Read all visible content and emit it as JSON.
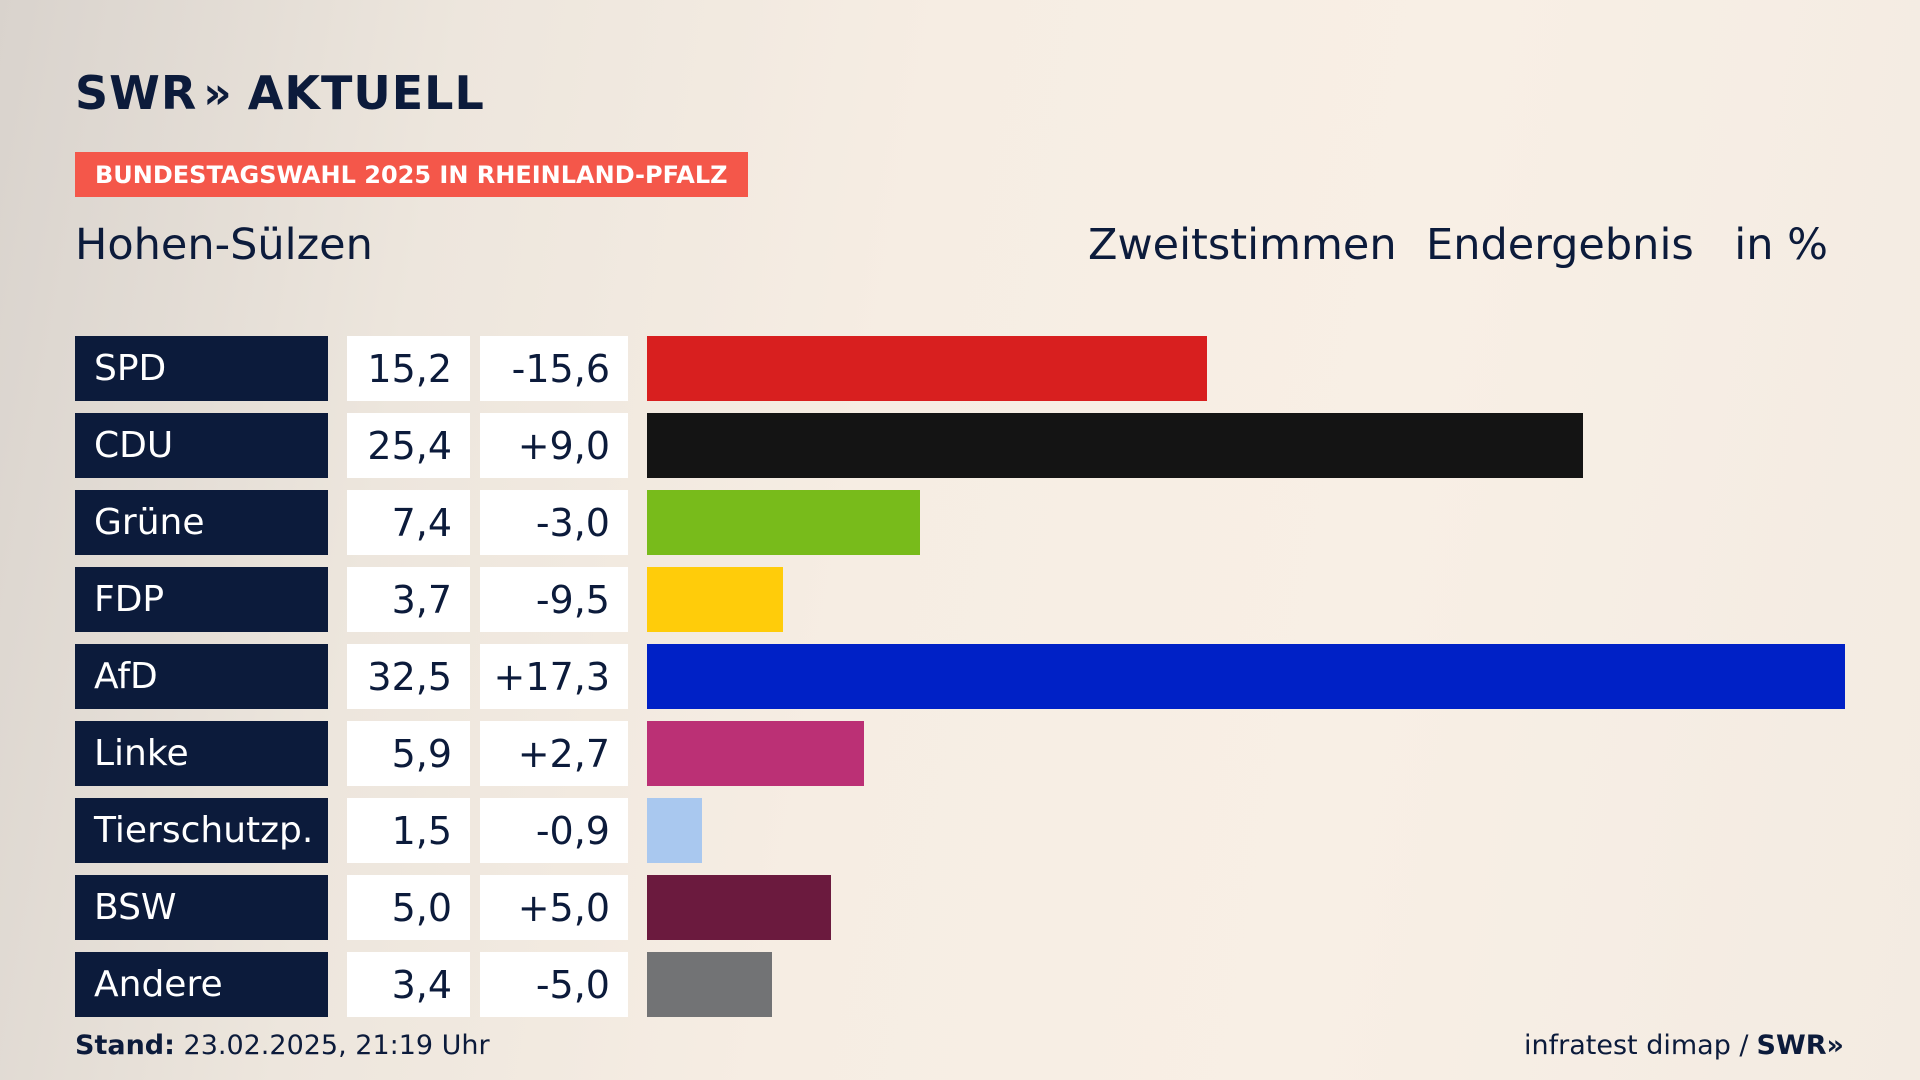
{
  "header": {
    "logo_text": "SWR",
    "logo_chevrons": "»",
    "logo_word": "AKTUELL",
    "badge": "BUNDESTAGSWAHL 2025 IN RHEINLAND-PFALZ",
    "badge_color": "#f4574a",
    "place": "Hohen-Sülzen",
    "col_vote": "Zweitstimmen",
    "col_status": "Endergebnis",
    "col_unit": "in %"
  },
  "footer": {
    "stand_label": "Stand:",
    "stand_value": "23.02.2025, 21:19 Uhr",
    "source": "infratest dimap /",
    "source_brand": "SWR»"
  },
  "chart_data": {
    "type": "bar",
    "orientation": "horizontal",
    "xlim": [
      0,
      32.5
    ],
    "categories": [
      "SPD",
      "CDU",
      "Grüne",
      "FDP",
      "AfD",
      "Linke",
      "Tierschutzp.",
      "BSW",
      "Andere"
    ],
    "values": [
      15.2,
      25.4,
      7.4,
      3.7,
      32.5,
      5.9,
      1.5,
      5.0,
      3.4
    ],
    "value_labels": [
      "15,2",
      "25,4",
      "7,4",
      "3,7",
      "32,5",
      "5,9",
      "1,5",
      "5,0",
      "3,4"
    ],
    "diff_labels": [
      "-15,6",
      "+9,0",
      "-3,0",
      "-9,5",
      "+17,3",
      "+2,7",
      "-0,9",
      "+5,0",
      "-5,0"
    ],
    "colors": [
      "#d81f1f",
      "#141414",
      "#78bb1b",
      "#ffcc0a",
      "#0021c6",
      "#bb3075",
      "#a9c8ef",
      "#6b1a3e",
      "#727375"
    ]
  }
}
